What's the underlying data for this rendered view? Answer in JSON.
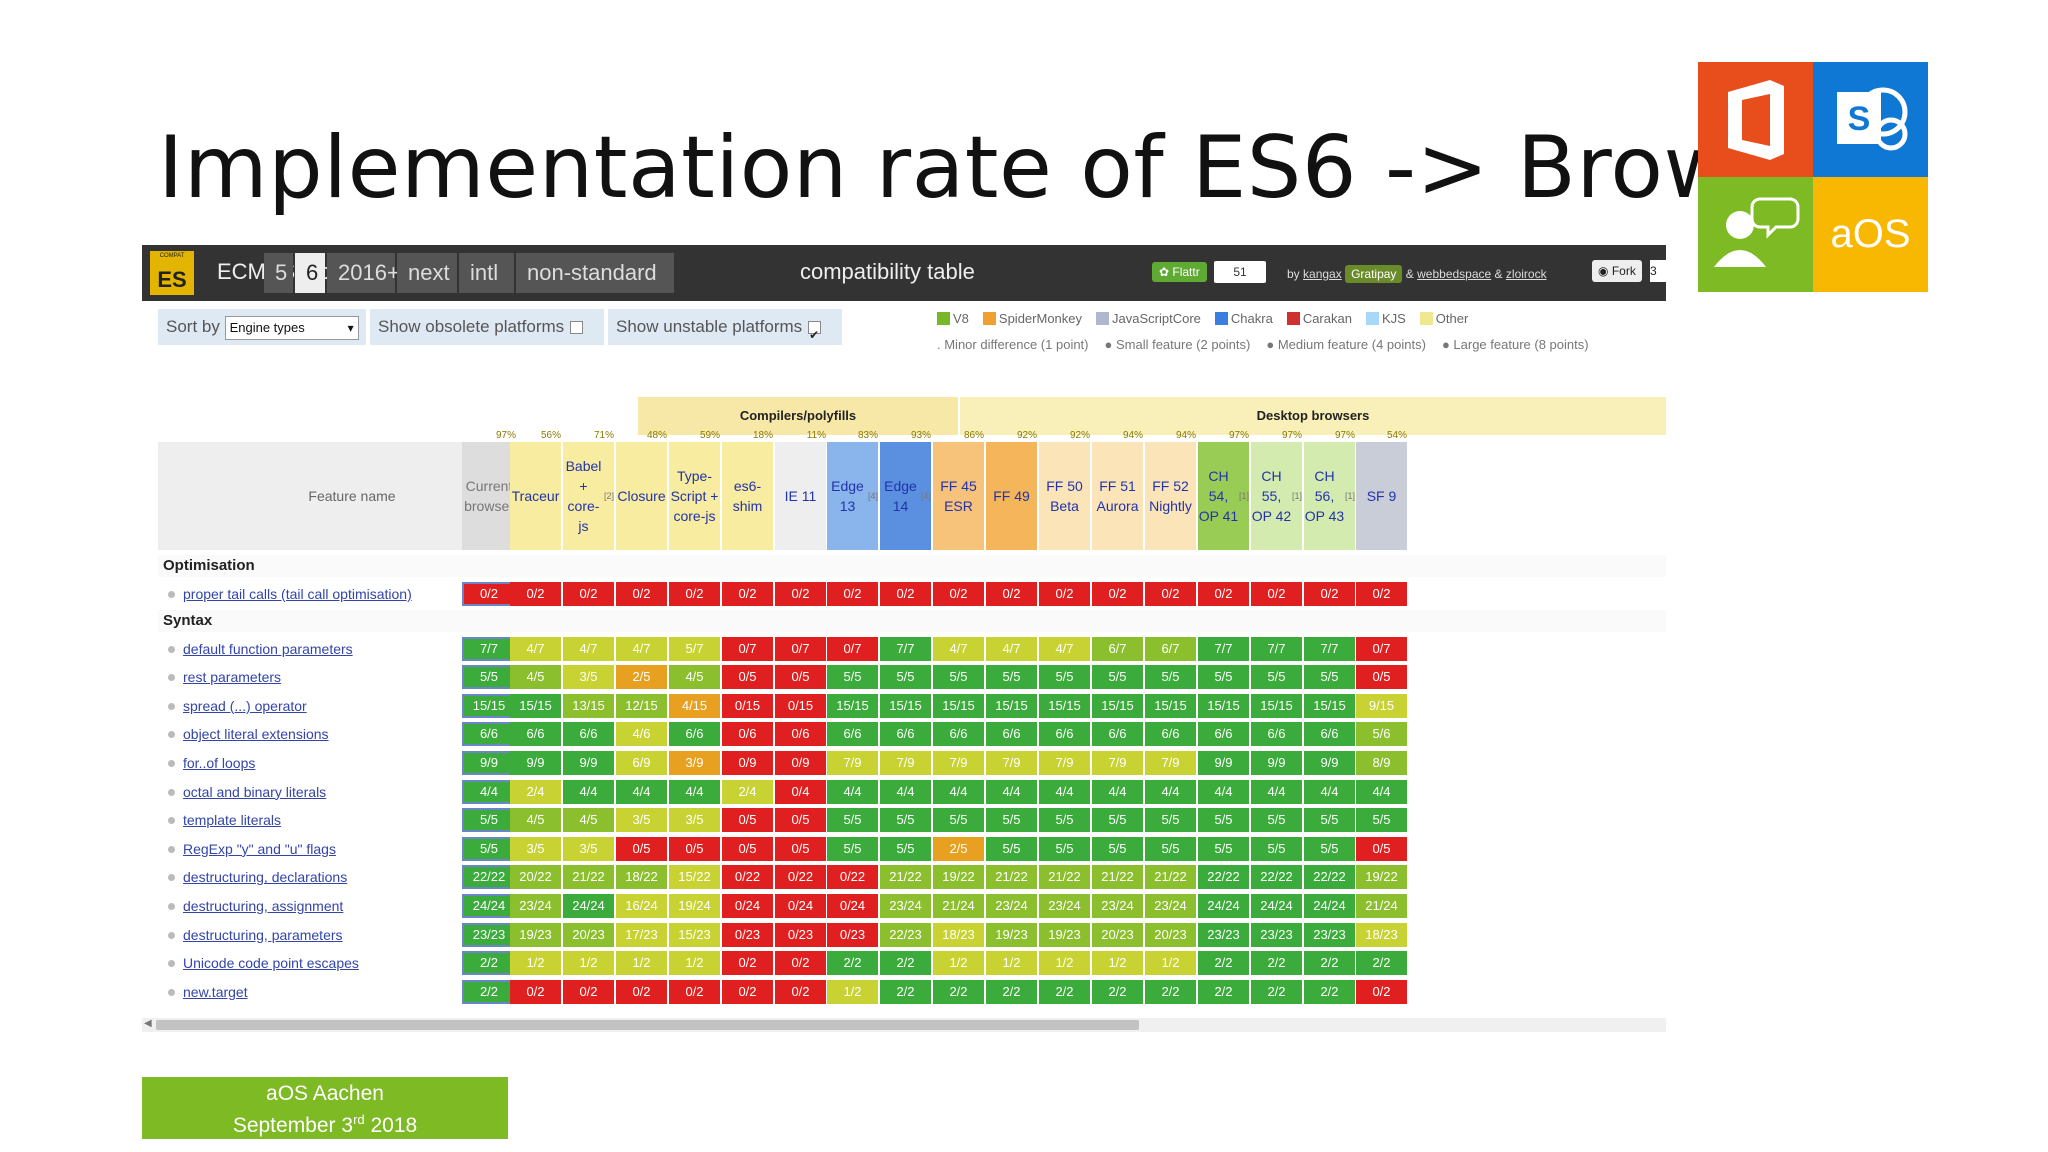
{
  "slide": {
    "title": "Implementation rate of ES6 -> Browser",
    "logo_text": "aOS",
    "footer_line1": "aOS Aachen",
    "footer_line2_pre": "September 3",
    "footer_line2_sup": "rd",
    "footer_line2_post": " 2018"
  },
  "topbar": {
    "logo_small": "COMPAT",
    "logo_text": "ES",
    "brand": "ECMAScript",
    "tabs": [
      "5",
      "6",
      "2016+",
      "next",
      "intl",
      "non-standard"
    ],
    "active_tab": "6",
    "compat_label": "compatibility table",
    "flattr_label": "Flattr",
    "flattr_count": "51",
    "by_text": "by",
    "author1": "kangax",
    "gratipay": "Gratipay",
    "amp": "&",
    "author2": "webbedspace",
    "amp2": "&",
    "author3": "zloirock",
    "fork_label": "Fork",
    "fork_count": "3"
  },
  "controls": {
    "sort_by": "Sort by",
    "sort_value": "Engine types",
    "obsolete": "Show obsolete platforms",
    "unstable": "Show unstable platforms"
  },
  "legend": {
    "engines": [
      {
        "name": "V8",
        "color": "#78b72a"
      },
      {
        "name": "SpiderMonkey",
        "color": "#f0a030"
      },
      {
        "name": "JavaScriptCore",
        "color": "#b0b8d0"
      },
      {
        "name": "Chakra",
        "color": "#3a7ee0"
      },
      {
        "name": "Carakan",
        "color": "#d03030"
      },
      {
        "name": "KJS",
        "color": "#a8d8f8"
      },
      {
        "name": "Other",
        "color": "#f0e890"
      }
    ],
    "sizes": [
      "Minor difference (1 point)",
      "Small feature (2 points)",
      "Medium feature (4 points)",
      "Large feature (8 points)"
    ]
  },
  "groups": {
    "compilers": "Compilers/polyfills",
    "desktop": "Desktop browsers"
  },
  "feature_header": "Feature name",
  "columns": [
    {
      "id": "current",
      "label": "Current browser",
      "pct": "97%",
      "bg": "#dddddd",
      "fg": "#777"
    },
    {
      "id": "traceur",
      "label": "Traceur",
      "pct": "56%",
      "bg": "#f8eca0",
      "fg": "#2233aa"
    },
    {
      "id": "babel",
      "label": "Babel + core-js",
      "sup": "[2]",
      "pct": "71%",
      "bg": "#f8eca0",
      "fg": "#2233aa"
    },
    {
      "id": "closure",
      "label": "Closure",
      "pct": "48%",
      "bg": "#f8eca0",
      "fg": "#2233aa"
    },
    {
      "id": "typescript",
      "label": "Type-Script + core-js",
      "pct": "59%",
      "bg": "#f8eca0",
      "fg": "#2233aa"
    },
    {
      "id": "es6shim",
      "label": "es6-shim",
      "pct": "18%",
      "bg": "#f8eca0",
      "fg": "#2233aa"
    },
    {
      "id": "ie11",
      "label": "IE 11",
      "pct": "11%",
      "bg": "#eeeeee",
      "fg": "#2233aa"
    },
    {
      "id": "edge13",
      "label": "Edge 13",
      "sup": "[4]",
      "pct": "83%",
      "bg": "#8ab4ec",
      "fg": "#2233aa"
    },
    {
      "id": "edge14",
      "label": "Edge 14",
      "sup": "[4]",
      "pct": "93%",
      "bg": "#5b8fe0",
      "fg": "#2233aa"
    },
    {
      "id": "ff45",
      "label": "FF 45 ESR",
      "pct": "86%",
      "bg": "#f7c27a",
      "fg": "#2233aa"
    },
    {
      "id": "ff49",
      "label": "FF 49",
      "pct": "92%",
      "bg": "#f5b55a",
      "fg": "#2233aa"
    },
    {
      "id": "ff50",
      "label": "FF 50 Beta",
      "pct": "92%",
      "bg": "#fbe4b8",
      "fg": "#2233aa"
    },
    {
      "id": "ff51",
      "label": "FF 51 Aurora",
      "pct": "94%",
      "bg": "#fbe4b8",
      "fg": "#2233aa"
    },
    {
      "id": "ff52",
      "label": "FF 52 Nightly",
      "pct": "94%",
      "bg": "#fbe4b8",
      "fg": "#2233aa"
    },
    {
      "id": "ch54",
      "label": "CH 54, OP 41",
      "sup": "[1]",
      "pct": "97%",
      "bg": "#99cc55",
      "fg": "#2233aa"
    },
    {
      "id": "ch55",
      "label": "CH 55, OP 42",
      "sup": "[1]",
      "pct": "97%",
      "bg": "#d4ebb0",
      "fg": "#2233aa"
    },
    {
      "id": "ch56",
      "label": "CH 56, OP 43",
      "sup": "[1]",
      "pct": "97%",
      "bg": "#d4ebb0",
      "fg": "#2233aa"
    },
    {
      "id": "sf9",
      "label": "SF 9",
      "pct": "54%",
      "bg": "#c8cdd8",
      "fg": "#2233aa"
    }
  ],
  "sections": [
    {
      "title": "Optimisation",
      "rows": [
        {
          "name": "proper tail calls (tail call optimisation)",
          "cells": [
            "0/2",
            "0/2",
            "0/2",
            "0/2",
            "0/2",
            "0/2",
            "0/2",
            "0/2",
            "0/2",
            "0/2",
            "0/2",
            "0/2",
            "0/2",
            "0/2",
            "0/2",
            "0/2",
            "0/2",
            "0/2"
          ]
        }
      ]
    },
    {
      "title": "Syntax",
      "rows": [
        {
          "name": "default function parameters",
          "cells": [
            "7/7",
            "4/7",
            "4/7",
            "4/7",
            "5/7",
            "0/7",
            "0/7",
            "0/7",
            "7/7",
            "4/7",
            "4/7",
            "4/7",
            "6/7",
            "6/7",
            "7/7",
            "7/7",
            "7/7",
            "0/7"
          ]
        },
        {
          "name": "rest parameters",
          "cells": [
            "5/5",
            "4/5",
            "3/5",
            "2/5",
            "4/5",
            "0/5",
            "0/5",
            "5/5",
            "5/5",
            "5/5",
            "5/5",
            "5/5",
            "5/5",
            "5/5",
            "5/5",
            "5/5",
            "5/5",
            "0/5"
          ]
        },
        {
          "name": "spread (...) operator",
          "cells": [
            "15/15",
            "15/15",
            "13/15",
            "12/15",
            "4/15",
            "0/15",
            "0/15",
            "15/15",
            "15/15",
            "15/15",
            "15/15",
            "15/15",
            "15/15",
            "15/15",
            "15/15",
            "15/15",
            "15/15",
            "9/15"
          ]
        },
        {
          "name": "object literal extensions",
          "cells": [
            "6/6",
            "6/6",
            "6/6",
            "4/6",
            "6/6",
            "0/6",
            "0/6",
            "6/6",
            "6/6",
            "6/6",
            "6/6",
            "6/6",
            "6/6",
            "6/6",
            "6/6",
            "6/6",
            "6/6",
            "5/6"
          ]
        },
        {
          "name": "for..of loops",
          "cells": [
            "9/9",
            "9/9",
            "9/9",
            "6/9",
            "3/9",
            "0/9",
            "0/9",
            "7/9",
            "7/9",
            "7/9",
            "7/9",
            "7/9",
            "7/9",
            "7/9",
            "9/9",
            "9/9",
            "9/9",
            "8/9"
          ]
        },
        {
          "name": "octal and binary literals",
          "cells": [
            "4/4",
            "2/4",
            "4/4",
            "4/4",
            "4/4",
            "2/4",
            "0/4",
            "4/4",
            "4/4",
            "4/4",
            "4/4",
            "4/4",
            "4/4",
            "4/4",
            "4/4",
            "4/4",
            "4/4",
            "4/4"
          ]
        },
        {
          "name": "template literals",
          "cells": [
            "5/5",
            "4/5",
            "4/5",
            "3/5",
            "3/5",
            "0/5",
            "0/5",
            "5/5",
            "5/5",
            "5/5",
            "5/5",
            "5/5",
            "5/5",
            "5/5",
            "5/5",
            "5/5",
            "5/5",
            "5/5"
          ]
        },
        {
          "name": "RegExp \"y\" and \"u\" flags",
          "cells": [
            "5/5",
            "3/5",
            "3/5",
            "0/5",
            "0/5",
            "0/5",
            "0/5",
            "5/5",
            "5/5",
            "2/5",
            "5/5",
            "5/5",
            "5/5",
            "5/5",
            "5/5",
            "5/5",
            "5/5",
            "0/5"
          ]
        },
        {
          "name": "destructuring, declarations",
          "cells": [
            "22/22",
            "20/22",
            "21/22",
            "18/22",
            "15/22",
            "0/22",
            "0/22",
            "0/22",
            "21/22",
            "19/22",
            "21/22",
            "21/22",
            "21/22",
            "21/22",
            "22/22",
            "22/22",
            "22/22",
            "19/22"
          ]
        },
        {
          "name": "destructuring, assignment",
          "cells": [
            "24/24",
            "23/24",
            "24/24",
            "16/24",
            "19/24",
            "0/24",
            "0/24",
            "0/24",
            "23/24",
            "21/24",
            "23/24",
            "23/24",
            "23/24",
            "23/24",
            "24/24",
            "24/24",
            "24/24",
            "21/24"
          ]
        },
        {
          "name": "destructuring, parameters",
          "cells": [
            "23/23",
            "19/23",
            "20/23",
            "17/23",
            "15/23",
            "0/23",
            "0/23",
            "0/23",
            "22/23",
            "18/23",
            "19/23",
            "19/23",
            "20/23",
            "20/23",
            "23/23",
            "23/23",
            "23/23",
            "18/23"
          ]
        },
        {
          "name": "Unicode code point escapes",
          "cells": [
            "2/2",
            "1/2",
            "1/2",
            "1/2",
            "1/2",
            "0/2",
            "0/2",
            "2/2",
            "2/2",
            "1/2",
            "1/2",
            "1/2",
            "1/2",
            "1/2",
            "2/2",
            "2/2",
            "2/2",
            "2/2"
          ]
        },
        {
          "name": "new.target",
          "cells": [
            "2/2",
            "0/2",
            "0/2",
            "0/2",
            "0/2",
            "0/2",
            "0/2",
            "1/2",
            "2/2",
            "2/2",
            "2/2",
            "2/2",
            "2/2",
            "2/2",
            "2/2",
            "2/2",
            "2/2",
            "0/2"
          ]
        }
      ]
    }
  ],
  "colors": {
    "full": "#3bab3b",
    "partial_high": "#8cbf2e",
    "partial_mid": "#c8d232",
    "partial_low": "#e8a020",
    "none": "#e02020"
  }
}
